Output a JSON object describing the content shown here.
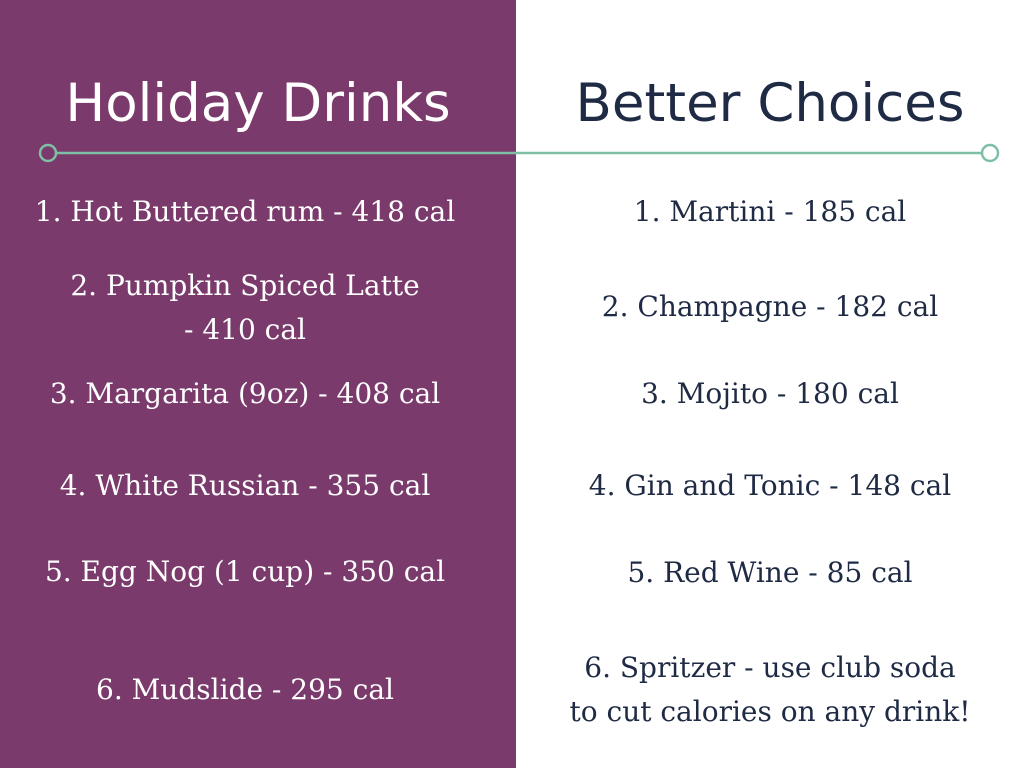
{
  "colors": {
    "left_background": "#7b3a6c",
    "right_background": "#ffffff",
    "left_text": "#ffffff",
    "right_text": "#1f2a44",
    "divider": "#7fbfa5"
  },
  "left": {
    "title": "Holiday Drinks",
    "items": [
      {
        "line1": "1. Hot Buttered rum - 418 cal"
      },
      {
        "line1": "2. Pumpkin Spiced Latte",
        "line2": "- 410 cal"
      },
      {
        "line1": "3. Margarita (9oz)  - 408 cal"
      },
      {
        "line1": "4. White Russian - 355 cal"
      },
      {
        "line1": "5. Egg Nog (1 cup)  - 350 cal"
      },
      {
        "line1": "6. Mudslide  - 295 cal"
      }
    ]
  },
  "right": {
    "title": "Better Choices",
    "items": [
      {
        "line1": "1. Martini - 185 cal"
      },
      {
        "line1": "2. Champagne - 182 cal"
      },
      {
        "line1": "3. Mojito - 180 cal"
      },
      {
        "line1": "4. Gin and Tonic - 148 cal"
      },
      {
        "line1": "5. Red Wine - 85 cal"
      },
      {
        "line1": "6. Spritzer - use club soda",
        "line2": "to cut calories on any drink!"
      }
    ]
  }
}
